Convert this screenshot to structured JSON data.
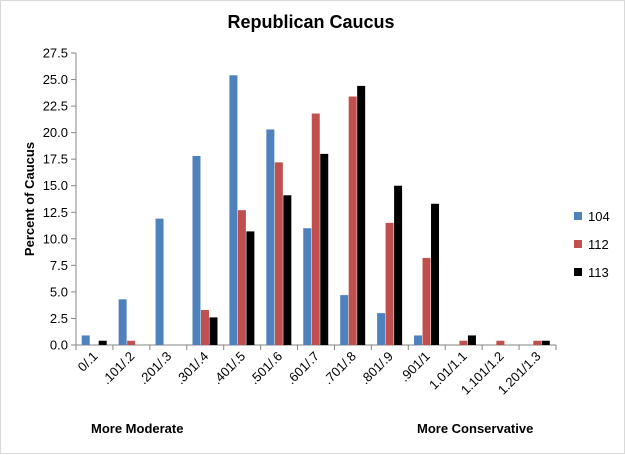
{
  "chart_data": {
    "type": "bar",
    "title": "Republican Caucus",
    "xlabel": "",
    "ylabel": "Percent of Caucus",
    "ylim": [
      0,
      27.5
    ],
    "yticks": [
      "0.0",
      "2.5",
      "5.0",
      "7.5",
      "10.0",
      "12.5",
      "15.0",
      "17.5",
      "20.0",
      "22.5",
      "25.0",
      "27.5"
    ],
    "grid": false,
    "legend_position": "right",
    "categories": [
      "0/.1",
      ".101/.2",
      ".201/.3",
      ".301/.4",
      ".401/.5",
      ".501/.6",
      ".601/.7",
      ".701/.8",
      ".801/.9",
      ".901/1",
      "1.01/1.1",
      "1.101/1.2",
      "1.201/1.3"
    ],
    "series": [
      {
        "name": "104",
        "color": "#4f81bd",
        "values": [
          0.9,
          4.3,
          11.9,
          17.8,
          25.4,
          20.3,
          11.0,
          4.7,
          3.0,
          0.9,
          0.0,
          0.0,
          0.0
        ]
      },
      {
        "name": "112",
        "color": "#c0504d",
        "values": [
          0.0,
          0.4,
          0.0,
          3.3,
          12.7,
          17.2,
          21.8,
          23.4,
          11.5,
          8.2,
          0.4,
          0.4,
          0.4
        ]
      },
      {
        "name": "113",
        "color": "#000000",
        "values": [
          0.4,
          0.0,
          0.0,
          2.6,
          10.7,
          14.1,
          18.0,
          24.4,
          15.0,
          13.3,
          0.9,
          0.0,
          0.4
        ]
      }
    ],
    "annotations": {
      "left": "More Moderate",
      "right": "More Conservative"
    }
  }
}
